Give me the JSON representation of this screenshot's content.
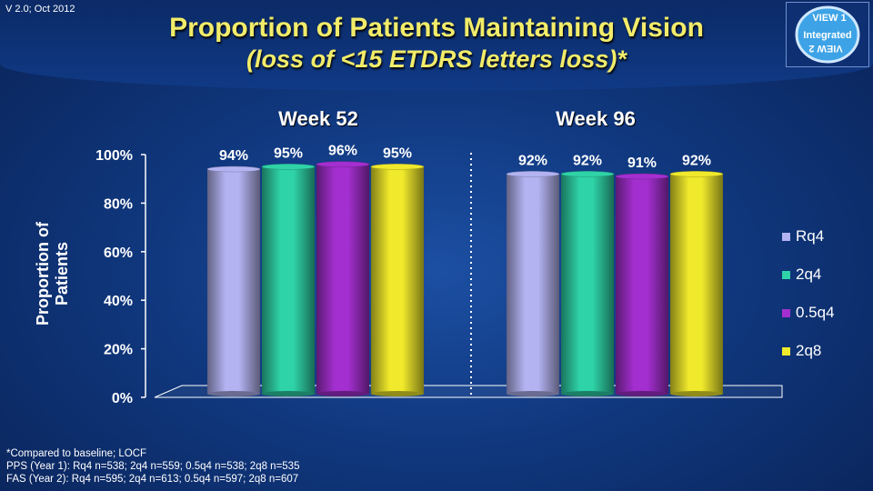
{
  "version": "V 2.0; Oct 2012",
  "title": "Proportion of Patients Maintaining Vision",
  "subtitle": "(loss of <15 ETDRS letters loss)*",
  "logo": {
    "line1": "VIEW 1",
    "line2": "Integrated",
    "line3": "VIEW 2"
  },
  "footnotes": {
    "line1": "*Compared to baseline; LOCF",
    "line2": "PPS (Year 1): Rq4 n=538; 2q4 n=559; 0.5q4 n=538; 2q8 n=535",
    "line3": "FAS (Year 2): Rq4 n=595; 2q4 n=613; 0.5q4 n=597; 2q8 n=607"
  },
  "chart_data": {
    "type": "bar",
    "ylabel": "Proportion of Patients",
    "ylim": [
      0,
      100
    ],
    "yticks": [
      "0%",
      "20%",
      "40%",
      "60%",
      "80%",
      "100%"
    ],
    "categories": [
      "Week 52",
      "Week 96"
    ],
    "legend_placement": "right",
    "series": [
      {
        "name": "Rq4",
        "values": [
          94,
          92
        ],
        "labels": [
          "94%",
          "92%"
        ],
        "color": "#b3b3f2"
      },
      {
        "name": "2q4",
        "values": [
          95,
          92
        ],
        "labels": [
          "95%",
          "92%"
        ],
        "color": "#2fd3a8"
      },
      {
        "name": "0.5q4",
        "values": [
          96,
          91
        ],
        "labels": [
          "96%",
          "91%"
        ],
        "color": "#a42fd0"
      },
      {
        "name": "2q8",
        "values": [
          95,
          92
        ],
        "labels": [
          "95%",
          "92%"
        ],
        "color": "#f0e92c"
      }
    ]
  }
}
